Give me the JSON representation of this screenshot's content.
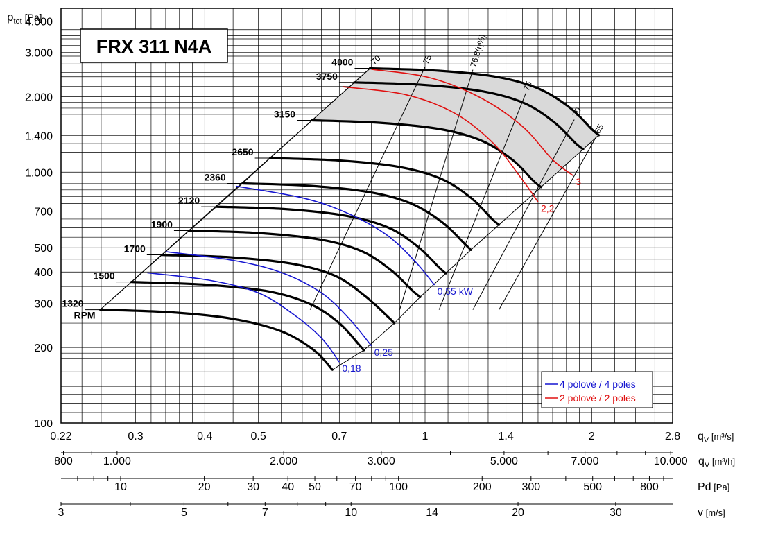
{
  "chart_data": {
    "type": "line",
    "title": "FRX 311 N4A",
    "ylabel": {
      "main": "p",
      "sub": "tot",
      "unit": "[Pa]"
    },
    "yscale": "log",
    "ylim": [
      100,
      4500
    ],
    "y_ticks": [
      {
        "v": 4000,
        "l": "4.000"
      },
      {
        "v": 3000,
        "l": "3.000"
      },
      {
        "v": 2000,
        "l": "2.000"
      },
      {
        "v": 1400,
        "l": "1.400"
      },
      {
        "v": 1000,
        "l": "1.000"
      },
      {
        "v": 700,
        "l": "700"
      },
      {
        "v": 500,
        "l": "500"
      },
      {
        "v": 400,
        "l": "400"
      },
      {
        "v": 300,
        "l": "300"
      },
      {
        "v": 200,
        "l": "200"
      },
      {
        "v": 100,
        "l": "100"
      }
    ],
    "xscale": "log",
    "xlim": [
      0.22,
      2.8
    ],
    "x_axes": [
      {
        "id": "qv_s",
        "unit_main": "q",
        "unit_sub": "V",
        "unit_label": "[m³/s]",
        "ticks": [
          {
            "v": 0.22,
            "l": "0.22"
          },
          {
            "v": 0.3,
            "l": "0.3"
          },
          {
            "v": 0.4,
            "l": "0.4"
          },
          {
            "v": 0.5,
            "l": "0.5"
          },
          {
            "v": 0.7,
            "l": "0.7"
          },
          {
            "v": 1,
            "l": "1"
          },
          {
            "v": 1.4,
            "l": "1.4"
          },
          {
            "v": 2,
            "l": "2"
          },
          {
            "v": 2.8,
            "l": "2.8"
          }
        ]
      },
      {
        "id": "qv_h",
        "unit_main": "q",
        "unit_sub": "V",
        "unit_label": "[m³/h]",
        "ticks": [
          {
            "v": 800,
            "l": "800"
          },
          {
            "v": 1000,
            "l": "1.000"
          },
          {
            "v": 2000,
            "l": "2.000"
          },
          {
            "v": 3000,
            "l": "3.000"
          },
          {
            "v": 5000,
            "l": "5.000"
          },
          {
            "v": 7000,
            "l": "7.000"
          },
          {
            "v": 10000,
            "l": "10.000"
          }
        ]
      },
      {
        "id": "pd",
        "unit_main": "Pd",
        "unit_label": "[Pa]",
        "ticks": [
          {
            "v": 10,
            "l": "10"
          },
          {
            "v": 20,
            "l": "20"
          },
          {
            "v": 30,
            "l": "30"
          },
          {
            "v": 40,
            "l": "40"
          },
          {
            "v": 50,
            "l": "50"
          },
          {
            "v": 70,
            "l": "70"
          },
          {
            "v": 100,
            "l": "100"
          },
          {
            "v": 200,
            "l": "200"
          },
          {
            "v": 300,
            "l": "300"
          },
          {
            "v": 500,
            "l": "500"
          },
          {
            "v": 800,
            "l": "800"
          }
        ]
      },
      {
        "id": "v",
        "unit_main": "v",
        "unit_label": "[m/s]",
        "ticks": [
          {
            "v": 3,
            "l": "3"
          },
          {
            "v": 5,
            "l": "5"
          },
          {
            "v": 7,
            "l": "7"
          },
          {
            "v": 10,
            "l": "10"
          },
          {
            "v": 14,
            "l": "14"
          },
          {
            "v": 20,
            "l": "20"
          },
          {
            "v": 30,
            "l": "30"
          }
        ]
      }
    ],
    "fan_curves": [
      {
        "rpm": "1320",
        "rpm_unit": "RPM",
        "points": [
          [
            0.259,
            283
          ],
          [
            0.35,
            276
          ],
          [
            0.45,
            260
          ],
          [
            0.55,
            232
          ],
          [
            0.63,
            195
          ],
          [
            0.68,
            163
          ]
        ]
      },
      {
        "rpm": "1500",
        "points": [
          [
            0.295,
            365
          ],
          [
            0.4,
            356
          ],
          [
            0.52,
            335
          ],
          [
            0.62,
            298
          ],
          [
            0.7,
            250
          ],
          [
            0.76,
            205
          ],
          [
            0.775,
            195
          ]
        ]
      },
      {
        "rpm": "1700",
        "points": [
          [
            0.335,
            468
          ],
          [
            0.45,
            457
          ],
          [
            0.58,
            430
          ],
          [
            0.69,
            385
          ],
          [
            0.78,
            320
          ],
          [
            0.86,
            263
          ],
          [
            0.88,
            250
          ]
        ]
      },
      {
        "rpm": "1900",
        "points": [
          [
            0.375,
            585
          ],
          [
            0.5,
            572
          ],
          [
            0.65,
            538
          ],
          [
            0.77,
            483
          ],
          [
            0.87,
            405
          ],
          [
            0.95,
            336
          ],
          [
            0.98,
            318
          ]
        ]
      },
      {
        "rpm": "2120",
        "points": [
          [
            0.42,
            728
          ],
          [
            0.56,
            712
          ],
          [
            0.72,
            670
          ],
          [
            0.86,
            600
          ],
          [
            0.97,
            505
          ],
          [
            1.06,
            417
          ],
          [
            1.09,
            395
          ]
        ]
      },
      {
        "rpm": "2360",
        "points": [
          [
            0.468,
            902
          ],
          [
            0.62,
            882
          ],
          [
            0.8,
            830
          ],
          [
            0.95,
            745
          ],
          [
            1.08,
            625
          ],
          [
            1.18,
            517
          ],
          [
            1.21,
            490
          ]
        ]
      },
      {
        "rpm": "2650",
        "points": [
          [
            0.525,
            1138
          ],
          [
            0.7,
            1113
          ],
          [
            0.9,
            1048
          ],
          [
            1.07,
            940
          ],
          [
            1.21,
            790
          ],
          [
            1.32,
            652
          ],
          [
            1.36,
            617
          ]
        ]
      },
      {
        "rpm": "3150",
        "points": [
          [
            0.625,
            1610
          ],
          [
            0.83,
            1573
          ],
          [
            1.07,
            1482
          ],
          [
            1.27,
            1330
          ],
          [
            1.44,
            1117
          ],
          [
            1.57,
            922
          ],
          [
            1.62,
            872
          ]
        ]
      },
      {
        "rpm": "3750",
        "points": [
          [
            0.745,
            2280
          ],
          [
            0.99,
            2230
          ],
          [
            1.27,
            2100
          ],
          [
            1.51,
            1885
          ],
          [
            1.71,
            1583
          ],
          [
            1.87,
            1305
          ],
          [
            1.93,
            1235
          ]
        ]
      },
      {
        "rpm": "4000",
        "points": [
          [
            0.795,
            2595
          ],
          [
            1.06,
            2538
          ],
          [
            1.36,
            2390
          ],
          [
            1.61,
            2145
          ],
          [
            1.83,
            1800
          ],
          [
            2.0,
            1485
          ],
          [
            2.06,
            1405
          ]
        ]
      }
    ],
    "power_lines_4pole": {
      "label": "4 pólové / 4 poles",
      "color": "#1515d0",
      "lines": [
        {
          "label": "0,18",
          "points": [
            [
              0.315,
              397
            ],
            [
              0.41,
              370
            ],
            [
              0.5,
              330
            ],
            [
              0.58,
              270
            ],
            [
              0.65,
              218
            ],
            [
              0.7,
              175
            ]
          ]
        },
        {
          "label": "0,25",
          "points": [
            [
              0.34,
              482
            ],
            [
              0.45,
              445
            ],
            [
              0.55,
              398
            ],
            [
              0.65,
              330
            ],
            [
              0.73,
              260
            ],
            [
              0.8,
              203
            ]
          ]
        },
        {
          "label": "0,55 kW",
          "points": [
            [
              0.455,
              880
            ],
            [
              0.6,
              790
            ],
            [
              0.72,
              690
            ],
            [
              0.85,
              565
            ],
            [
              0.96,
              440
            ],
            [
              1.04,
              355
            ]
          ]
        }
      ]
    },
    "power_lines_2pole": {
      "label": "2 pólové / 2 poles",
      "color": "#e01010",
      "lines": [
        {
          "label": "2,2",
          "points": [
            [
              0.71,
              2190
            ],
            [
              0.92,
              2040
            ],
            [
              1.13,
              1720
            ],
            [
              1.33,
              1300
            ],
            [
              1.5,
              930
            ],
            [
              1.6,
              760
            ]
          ]
        },
        {
          "label": "3",
          "points": [
            [
              0.8,
              2570
            ],
            [
              1.02,
              2380
            ],
            [
              1.26,
              1980
            ],
            [
              1.5,
              1520
            ],
            [
              1.7,
              1120
            ],
            [
              1.85,
              970
            ]
          ]
        }
      ]
    },
    "efficiency_lines": [
      {
        "label": "70",
        "points": [
          [
            0.259,
            283
          ],
          [
            0.8,
            2620
          ]
        ]
      },
      {
        "label": "75",
        "points": [
          [
            0.62,
            283
          ],
          [
            1.0,
            2630
          ]
        ]
      },
      {
        "label": "76,8(η%)",
        "points": [
          [
            0.9,
            283
          ],
          [
            1.22,
            2560
          ]
        ]
      },
      {
        "label": "75",
        "points": [
          [
            1.06,
            283
          ],
          [
            1.52,
            2060
          ]
        ]
      },
      {
        "label": "70",
        "points": [
          [
            1.22,
            283
          ],
          [
            1.86,
            1620
          ]
        ]
      },
      {
        "label": "65",
        "points": [
          [
            1.36,
            283
          ],
          [
            2.04,
            1390
          ]
        ]
      }
    ],
    "shaded_region": {
      "color": "#d9d9d9",
      "outline": "rpm_3150_to_4000"
    },
    "legend": {
      "placement": "bottom-right"
    }
  }
}
